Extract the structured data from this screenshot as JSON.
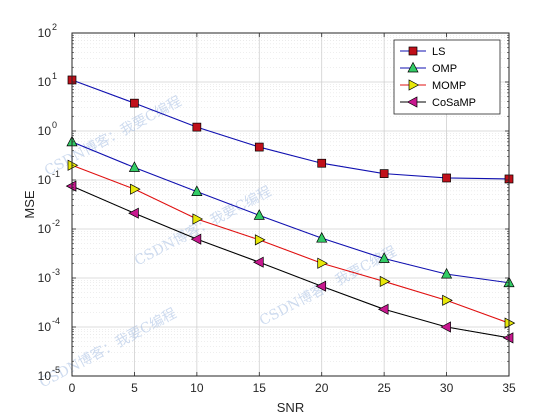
{
  "chart_data": {
    "type": "line",
    "xlabel": "SNR",
    "ylabel": "MSE",
    "xlim": [
      0,
      35
    ],
    "ylim": [
      1e-05,
      100
    ],
    "yscale": "log",
    "grid": true,
    "minor_grid": true,
    "legend_position": "top-right",
    "x_ticks": [
      "0",
      "5",
      "10",
      "15",
      "20",
      "25",
      "30",
      "35"
    ],
    "y_ticks": [
      {
        "base": "10",
        "exp": "-5"
      },
      {
        "base": "10",
        "exp": "-4"
      },
      {
        "base": "10",
        "exp": "-3"
      },
      {
        "base": "10",
        "exp": "-2"
      },
      {
        "base": "10",
        "exp": "-1"
      },
      {
        "base": "10",
        "exp": "0"
      },
      {
        "base": "10",
        "exp": "1"
      },
      {
        "base": "10",
        "exp": "2"
      }
    ],
    "x": [
      0,
      5,
      10,
      15,
      20,
      25,
      30,
      35
    ],
    "series": [
      {
        "name": "LS",
        "color": "#1010b0",
        "marker": "square",
        "marker_color": "#c0101a",
        "values": [
          11,
          3.7,
          1.2,
          0.47,
          0.22,
          0.135,
          0.11,
          0.105
        ]
      },
      {
        "name": "OMP",
        "color": "#1010b0",
        "marker": "triangle-up",
        "marker_color": "#33cc66",
        "values": [
          0.6,
          0.18,
          0.058,
          0.019,
          0.0065,
          0.0025,
          0.0012,
          0.0008
        ]
      },
      {
        "name": "MOMP",
        "color": "#e01010",
        "marker": "triangle-right",
        "marker_color": "#e8e80a",
        "values": [
          0.2,
          0.065,
          0.016,
          0.006,
          0.002,
          0.00085,
          0.00035,
          0.00012
        ]
      },
      {
        "name": "CoSaMP",
        "color": "#000000",
        "marker": "triangle-left",
        "marker_color": "#c8188f",
        "values": [
          0.075,
          0.021,
          0.0062,
          0.0021,
          0.00068,
          0.00023,
          0.0001,
          6e-05
        ]
      }
    ],
    "watermarks": [
      "CSDN博客：我要C编程",
      "CSDN博客：我要C编程",
      "CSDN博客：我要C编程",
      "CSDN博客：我要C编程"
    ]
  }
}
